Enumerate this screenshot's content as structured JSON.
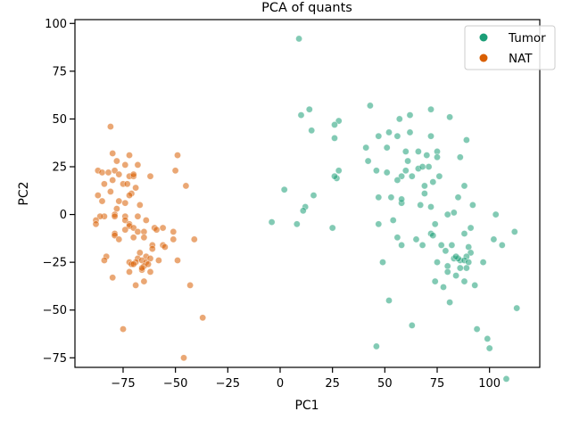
{
  "chart_data": {
    "type": "scatter",
    "title": "PCA of quants",
    "xlabel": "PC1",
    "ylabel": "PC2",
    "xlim": [
      -98,
      124
    ],
    "ylim": [
      -80,
      102
    ],
    "xticks": [
      -75,
      -50,
      -25,
      0,
      25,
      50,
      75,
      100
    ],
    "yticks": [
      -75,
      -50,
      -25,
      0,
      25,
      50,
      75,
      100
    ],
    "grid": false,
    "legend_position": "top-right",
    "series": [
      {
        "name": "Tumor",
        "color": "#1b9e77",
        "points": [
          [
            9,
            92
          ],
          [
            43,
            57
          ],
          [
            14,
            55
          ],
          [
            72,
            55
          ],
          [
            10,
            52
          ],
          [
            57,
            50
          ],
          [
            62,
            52
          ],
          [
            81,
            51
          ],
          [
            28,
            49
          ],
          [
            26,
            47
          ],
          [
            15,
            44
          ],
          [
            52,
            43
          ],
          [
            62,
            43
          ],
          [
            56,
            41
          ],
          [
            72,
            41
          ],
          [
            47,
            41
          ],
          [
            26,
            40
          ],
          [
            89,
            39
          ],
          [
            41,
            35
          ],
          [
            51,
            35
          ],
          [
            66,
            33
          ],
          [
            75,
            33
          ],
          [
            60,
            33
          ],
          [
            75,
            30
          ],
          [
            70,
            31
          ],
          [
            86,
            30
          ],
          [
            42,
            28
          ],
          [
            61,
            28
          ],
          [
            66,
            24
          ],
          [
            68,
            25
          ],
          [
            71,
            25
          ],
          [
            28,
            23
          ],
          [
            46,
            23
          ],
          [
            60,
            23
          ],
          [
            58,
            20
          ],
          [
            63,
            20
          ],
          [
            51,
            22
          ],
          [
            76,
            20
          ],
          [
            56,
            18
          ],
          [
            27,
            19
          ],
          [
            26,
            20
          ],
          [
            73,
            17
          ],
          [
            69,
            15
          ],
          [
            88,
            15
          ],
          [
            2,
            13
          ],
          [
            16,
            10
          ],
          [
            69,
            11
          ],
          [
            47,
            9
          ],
          [
            53,
            9
          ],
          [
            85,
            9
          ],
          [
            58,
            6
          ],
          [
            58,
            8
          ],
          [
            67,
            5
          ],
          [
            72,
            4
          ],
          [
            12,
            4
          ],
          [
            92,
            5
          ],
          [
            11,
            2
          ],
          [
            83,
            1
          ],
          [
            103,
            0
          ],
          [
            80,
            0
          ],
          [
            -4,
            -4
          ],
          [
            8,
            -5
          ],
          [
            54,
            -3
          ],
          [
            47,
            -5
          ],
          [
            25,
            -7
          ],
          [
            74,
            -5
          ],
          [
            91,
            -7
          ],
          [
            72,
            -10
          ],
          [
            56,
            -12
          ],
          [
            88,
            -10
          ],
          [
            112,
            -9
          ],
          [
            73,
            -11
          ],
          [
            65,
            -13
          ],
          [
            77,
            -16
          ],
          [
            82,
            -16
          ],
          [
            102,
            -13
          ],
          [
            68,
            -16
          ],
          [
            90,
            -17
          ],
          [
            58,
            -16
          ],
          [
            106,
            -16
          ],
          [
            91,
            -20
          ],
          [
            89,
            -22
          ],
          [
            79,
            -19
          ],
          [
            83,
            -23
          ],
          [
            86,
            -24
          ],
          [
            88,
            -24
          ],
          [
            90,
            -25
          ],
          [
            85,
            -23
          ],
          [
            75,
            -25
          ],
          [
            49,
            -25
          ],
          [
            80,
            -27
          ],
          [
            89,
            -28
          ],
          [
            84,
            -32
          ],
          [
            86,
            -28
          ],
          [
            80,
            -30
          ],
          [
            74,
            -35
          ],
          [
            88,
            -35
          ],
          [
            93,
            -37
          ],
          [
            78,
            -38
          ],
          [
            52,
            -45
          ],
          [
            81,
            -46
          ],
          [
            113,
            -49
          ],
          [
            63,
            -58
          ],
          [
            46,
            -69
          ],
          [
            94,
            -60
          ],
          [
            99,
            -65
          ],
          [
            100,
            -70
          ],
          [
            108,
            -86
          ],
          [
            97,
            -25
          ],
          [
            84,
            -22
          ]
        ]
      },
      {
        "name": "NAT",
        "color": "#d95f02",
        "points": [
          [
            -81,
            46
          ],
          [
            -80,
            32
          ],
          [
            -72,
            31
          ],
          [
            -49,
            31
          ],
          [
            -78,
            28
          ],
          [
            -74,
            26
          ],
          [
            -68,
            26
          ],
          [
            -79,
            23
          ],
          [
            -87,
            23
          ],
          [
            -85,
            22
          ],
          [
            -82,
            22
          ],
          [
            -77,
            21
          ],
          [
            -72,
            20
          ],
          [
            -70,
            20
          ],
          [
            -70,
            21
          ],
          [
            -62,
            20
          ],
          [
            -50,
            23
          ],
          [
            -80,
            18
          ],
          [
            -75,
            16
          ],
          [
            -73,
            16
          ],
          [
            -84,
            16
          ],
          [
            -69,
            14
          ],
          [
            -45,
            15
          ],
          [
            -81,
            12
          ],
          [
            -71,
            11
          ],
          [
            -72,
            10
          ],
          [
            -87,
            10
          ],
          [
            -85,
            7
          ],
          [
            -77,
            7
          ],
          [
            -74,
            6
          ],
          [
            -67,
            5
          ],
          [
            -78,
            3
          ],
          [
            -79,
            0
          ],
          [
            -84,
            -1
          ],
          [
            -79,
            -1
          ],
          [
            -74,
            -1
          ],
          [
            -74,
            -3
          ],
          [
            -68,
            -1
          ],
          [
            -86,
            -1
          ],
          [
            -88,
            -3
          ],
          [
            -88,
            -5
          ],
          [
            -72,
            -5
          ],
          [
            -72,
            -6
          ],
          [
            -64,
            -3
          ],
          [
            -74,
            -8
          ],
          [
            -70,
            -7
          ],
          [
            -56,
            -7
          ],
          [
            -60,
            -7
          ],
          [
            -68,
            -9
          ],
          [
            -65,
            -9
          ],
          [
            -59,
            -8
          ],
          [
            -51,
            -9
          ],
          [
            -79,
            -10
          ],
          [
            -79,
            -11
          ],
          [
            -70,
            -12
          ],
          [
            -65,
            -12
          ],
          [
            -77,
            -13
          ],
          [
            -51,
            -13
          ],
          [
            -41,
            -13
          ],
          [
            -56,
            -16
          ],
          [
            -61,
            -16
          ],
          [
            -55,
            -17
          ],
          [
            -61,
            -18
          ],
          [
            -67,
            -20
          ],
          [
            -64,
            -22
          ],
          [
            -68,
            -23
          ],
          [
            -66,
            -24
          ],
          [
            -69,
            -25
          ],
          [
            -64,
            -25
          ],
          [
            -62,
            -23
          ],
          [
            -72,
            -25
          ],
          [
            -71,
            -26
          ],
          [
            -70,
            -26
          ],
          [
            -65,
            -27
          ],
          [
            -63,
            -26
          ],
          [
            -66,
            -29
          ],
          [
            -58,
            -24
          ],
          [
            -49,
            -24
          ],
          [
            -83,
            -22
          ],
          [
            -84,
            -24
          ],
          [
            -72,
            -30
          ],
          [
            -62,
            -30
          ],
          [
            -80,
            -33
          ],
          [
            -69,
            -37
          ],
          [
            -65,
            -35
          ],
          [
            -43,
            -37
          ],
          [
            -37,
            -54
          ],
          [
            -75,
            -60
          ],
          [
            -46,
            -75
          ],
          [
            -66,
            -28
          ]
        ]
      }
    ]
  }
}
